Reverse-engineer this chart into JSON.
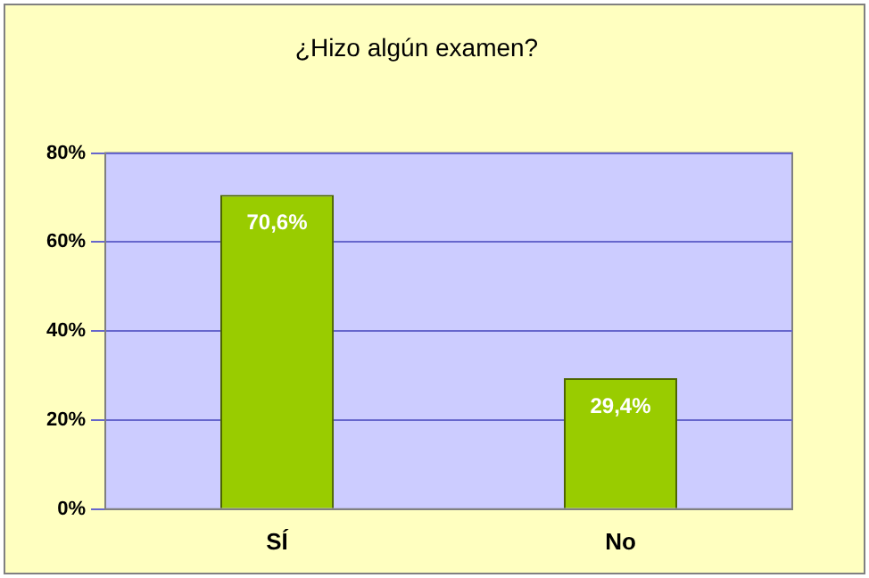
{
  "chart_data": {
    "type": "bar",
    "title": "¿Hizo algún examen?",
    "categories": [
      "SÍ",
      "No"
    ],
    "values": [
      70.6,
      29.4
    ],
    "value_labels": [
      "70,6%",
      "29,4%"
    ],
    "color": "#99cc00",
    "ylim": [
      0,
      80
    ],
    "yticks": [
      {
        "value": 0,
        "label": "0%"
      },
      {
        "value": 20,
        "label": "20%"
      },
      {
        "value": 40,
        "label": "40%"
      },
      {
        "value": 60,
        "label": "60%"
      },
      {
        "value": 80,
        "label": "80%"
      }
    ],
    "grid": "y",
    "legend": false
  }
}
